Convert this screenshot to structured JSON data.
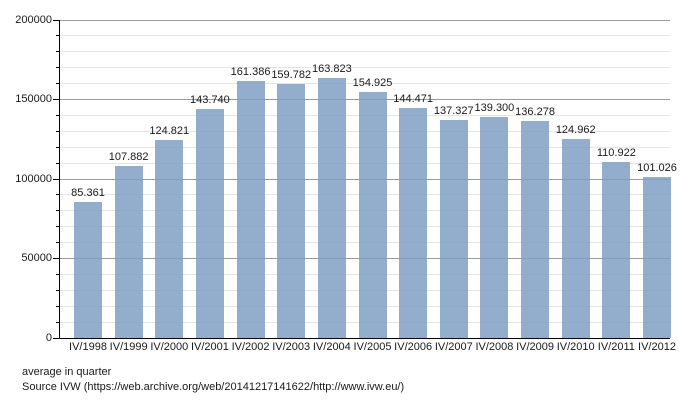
{
  "chart_data": {
    "type": "bar",
    "title": "",
    "xlabel": "",
    "ylabel": "",
    "categories": [
      "IV/1998",
      "IV/1999",
      "IV/2000",
      "IV/2001",
      "IV/2002",
      "IV/2003",
      "IV/2004",
      "IV/2005",
      "IV/2006",
      "IV/2007",
      "IV/2008",
      "IV/2009",
      "IV/2010",
      "IV/2011",
      "IV/2012"
    ],
    "values": [
      85361,
      107882,
      124821,
      143740,
      161386,
      159782,
      163823,
      154925,
      144471,
      137327,
      139300,
      136278,
      124962,
      110922,
      101026
    ],
    "value_labels": [
      "85.361",
      "107.882",
      "124.821",
      "143.740",
      "161.386",
      "159.782",
      "163.823",
      "154.925",
      "144.471",
      "137.327",
      "139.300",
      "136.278",
      "124.962",
      "110.922",
      "101.026"
    ],
    "ylim": [
      0,
      200000
    ],
    "ytick_major_interval": 50000,
    "ytick_minor_interval": 10000,
    "ytick_labels": [
      "0",
      "50000",
      "100000",
      "150000",
      "200000"
    ],
    "grid": true,
    "legend": "none",
    "bar_color": "#92AFCA",
    "major_grid_color": "#9A9A9A",
    "minor_grid_color": "#E4E4E4",
    "axis_color": "#000000"
  },
  "footer": {
    "note": "average in quarter",
    "source": "Source IVW (https://web.archive.org/web/20141217141622/http://www.ivw.eu/)"
  }
}
